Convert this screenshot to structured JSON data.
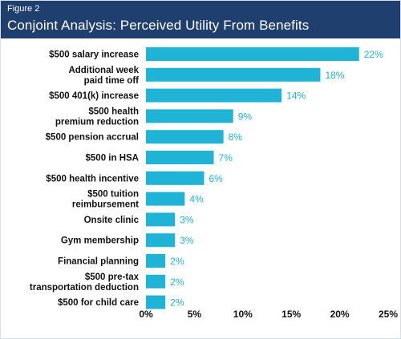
{
  "figure": {
    "label": "Figure 2",
    "title": "Conjoint Analysis: Perceived Utility From Benefits"
  },
  "colors": {
    "header_bg": "#1f3f6e",
    "bar": "#1fb3d6",
    "value_text": "#1fb3d6"
  },
  "chart_data": {
    "type": "bar",
    "orientation": "horizontal",
    "categories": [
      [
        "$500 salary increase"
      ],
      [
        "Additional week",
        "paid time off"
      ],
      [
        "$500 401(k) increase"
      ],
      [
        "$500 health",
        "premium reduction"
      ],
      [
        "$500 pension accrual"
      ],
      [
        "$500 in HSA"
      ],
      [
        "$500 health incentive"
      ],
      [
        "$500 tuition",
        "reimbursement"
      ],
      [
        "Onsite clinic"
      ],
      [
        "Gym membership"
      ],
      [
        "Financial planning"
      ],
      [
        "$500 pre-tax",
        "transportation deduction"
      ],
      [
        "$500 for child care"
      ]
    ],
    "values": [
      22,
      18,
      14,
      9,
      8,
      7,
      6,
      4,
      3,
      3,
      2,
      2,
      2
    ],
    "value_labels": [
      "22%",
      "18%",
      "14%",
      "9%",
      "8%",
      "7%",
      "6%",
      "4%",
      "3%",
      "3%",
      "2%",
      "2%",
      "2%"
    ],
    "xlim": [
      0,
      25
    ],
    "xticks": [
      0,
      5,
      10,
      15,
      20,
      25
    ],
    "xtick_labels": [
      "0%",
      "5%",
      "10%",
      "15%",
      "20%",
      "25%"
    ],
    "grid": false,
    "legend": "none"
  }
}
